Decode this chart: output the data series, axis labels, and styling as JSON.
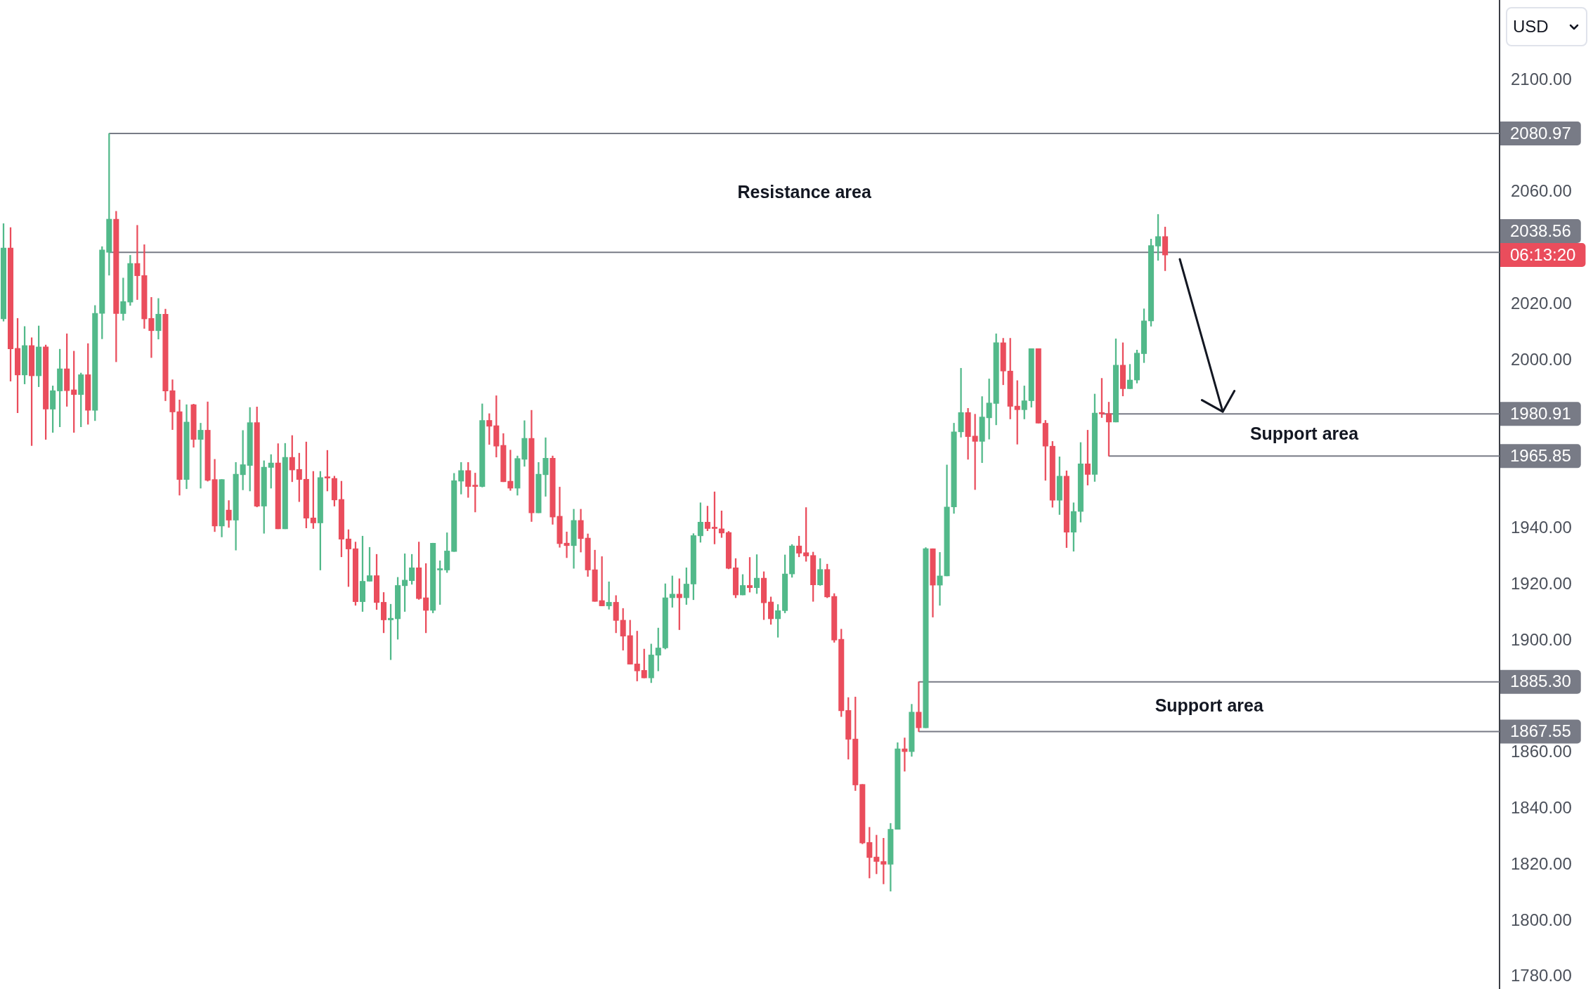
{
  "chart_data": {
    "type": "candlestick",
    "categories": [
      null,
      null,
      null,
      null,
      null,
      null,
      null,
      null,
      null,
      null,
      null,
      null,
      null,
      null,
      null,
      null,
      null,
      null,
      null,
      null,
      null,
      null,
      null,
      null,
      null,
      null,
      null,
      null,
      null,
      null,
      null,
      null,
      null,
      null,
      null,
      null,
      null,
      null,
      null,
      null,
      null,
      null,
      null,
      null,
      null,
      null,
      null,
      null,
      null,
      null,
      null,
      null,
      null,
      null,
      null,
      null,
      null,
      null,
      null,
      null,
      null,
      null,
      null,
      null,
      null,
      null,
      null,
      null,
      null,
      null,
      null,
      null,
      null,
      null,
      null,
      null,
      null,
      null,
      null,
      null,
      null,
      null,
      null,
      null,
      null,
      null,
      null,
      null,
      null,
      null,
      null,
      null,
      null,
      null,
      null,
      null,
      null,
      null,
      null,
      null,
      null,
      null,
      null,
      null,
      null,
      null,
      null,
      null,
      null,
      null,
      null,
      null,
      null,
      null,
      null,
      null,
      null,
      null,
      null,
      null,
      null,
      null,
      null,
      null,
      null,
      null,
      null,
      null,
      null,
      null,
      null,
      null,
      null,
      null,
      null,
      null,
      null,
      null,
      null,
      null,
      null,
      null,
      null,
      null,
      null,
      null,
      null,
      null,
      null,
      null,
      null,
      null,
      null,
      null,
      null,
      null,
      null,
      null,
      null,
      null,
      null,
      null,
      null,
      null,
      null,
      null,
      null,
      null,
      null,
      null,
      null,
      null,
      null,
      null,
      null,
      null,
      null,
      null,
      null,
      null,
      null,
      null,
      null,
      null,
      null,
      null,
      null,
      null,
      null,
      null,
      null,
      null,
      null,
      null,
      null,
      null,
      null,
      null,
      null,
      null,
      null,
      null,
      null,
      null,
      null,
      null,
      null,
      null,
      null,
      null,
      null,
      null,
      null
    ],
    "ohlc": [
      [
        2014.8,
        2048.8,
        2014.0,
        2040.1
      ],
      [
        2040.1,
        2047.4,
        1992.6,
        2004.1
      ],
      [
        2004.3,
        2015.0,
        1981.3,
        1994.8
      ],
      [
        1994.8,
        2012.1,
        1991.6,
        2005.3
      ],
      [
        2005.3,
        2008.1,
        1969.6,
        1994.5
      ],
      [
        1994.5,
        2012.3,
        1990.6,
        2004.8
      ],
      [
        2004.8,
        2005.5,
        1971.8,
        1982.6
      ],
      [
        1982.6,
        1990.9,
        1974.3,
        1989.2
      ],
      [
        1989.1,
        2004.0,
        1976.3,
        1997.0
      ],
      [
        1997.0,
        2009.5,
        1983.6,
        1989.2
      ],
      [
        1989.5,
        2003.3,
        1974.3,
        1987.8
      ],
      [
        1987.8,
        1995.5,
        1976.3,
        1994.9
      ],
      [
        1994.9,
        2006.0,
        1977.2,
        1982.2
      ],
      [
        1982.2,
        2019.6,
        1978.5,
        2016.8
      ],
      [
        2016.8,
        2040.6,
        2007.7,
        2039.4
      ],
      [
        2038.56,
        2080.97,
        2030.4,
        2050.4
      ],
      [
        2050.4,
        2053.2,
        1999.5,
        2016.7
      ],
      [
        2016.7,
        2029.4,
        2014.3,
        2021.0
      ],
      [
        2020.8,
        2037.5,
        2019.6,
        2034.6
      ],
      [
        2034.6,
        2048.2,
        2021.7,
        2030.2
      ],
      [
        2030.3,
        2041.3,
        2011.4,
        2014.8
      ],
      [
        2015.0,
        2022.5,
        2001.0,
        2010.6
      ],
      [
        2010.6,
        2022.1,
        2007.6,
        2016.5
      ],
      [
        2016.5,
        2018.3,
        1985.6,
        1989.1
      ],
      [
        1989.2,
        1993.1,
        1975.3,
        1981.6
      ],
      [
        1981.7,
        1985.9,
        1951.9,
        1957.5
      ],
      [
        1957.5,
        1984.2,
        1954.2,
        1978.0
      ],
      [
        1984.2,
        1984.4,
        1969.0,
        1971.8
      ],
      [
        1971.8,
        1977.6,
        1954.4,
        1975.1
      ],
      [
        1975.1,
        1985.2,
        1956.9,
        1957.2
      ],
      [
        1957.5,
        1964.7,
        1938.9,
        1940.9
      ],
      [
        1940.9,
        1957.5,
        1937.0,
        1957.5
      ],
      [
        1946.6,
        1950.0,
        1940.4,
        1943.0
      ],
      [
        1943.0,
        1963.6,
        1932.3,
        1959.4
      ],
      [
        1959.2,
        1975.0,
        1953.8,
        1962.8
      ],
      [
        1962.5,
        1983.2,
        1953.4,
        1977.8
      ],
      [
        1977.8,
        1983.4,
        1947.7,
        1948.0
      ],
      [
        1948.0,
        1964.2,
        1938.3,
        1961.9
      ],
      [
        1961.8,
        1966.4,
        1954.4,
        1963.4
      ],
      [
        1963.4,
        1970.3,
        1939.9,
        1939.9
      ],
      [
        1939.9,
        1970.4,
        1939.9,
        1965.4
      ],
      [
        1965.4,
        1973.2,
        1956.7,
        1960.9
      ],
      [
        1961.1,
        1966.9,
        1949.6,
        1957.5
      ],
      [
        1957.6,
        1970.9,
        1940.2,
        1943.7
      ],
      [
        1943.8,
        1960.4,
        1940.0,
        1942.0
      ],
      [
        1942.0,
        1960.4,
        1925.2,
        1958.2
      ],
      [
        1958.4,
        1967.9,
        1953.4,
        1958.0
      ],
      [
        1957.9,
        1958.7,
        1948.0,
        1950.2
      ],
      [
        1950.4,
        1956.9,
        1929.9,
        1936.2
      ],
      [
        1936.3,
        1939.6,
        1919.3,
        1932.7
      ],
      [
        1932.8,
        1935.2,
        1912.6,
        1913.9
      ],
      [
        1913.9,
        1937.3,
        1910.4,
        1921.2
      ],
      [
        1921.2,
        1933.3,
        1921.2,
        1923.2
      ],
      [
        1923.2,
        1930.8,
        1911.1,
        1913.6
      ],
      [
        1913.7,
        1917.2,
        1902.8,
        1907.4
      ],
      [
        1907.4,
        1913.0,
        1893.2,
        1908.0
      ],
      [
        1907.8,
        1922.6,
        1900.5,
        1919.7
      ],
      [
        1919.6,
        1931.0,
        1910.4,
        1921.6
      ],
      [
        1921.4,
        1930.8,
        1920.1,
        1926.0
      ],
      [
        1926.0,
        1935.2,
        1914.7,
        1915.0
      ],
      [
        1915.3,
        1927.5,
        1902.8,
        1910.8
      ],
      [
        1910.8,
        1934.8,
        1909.9,
        1934.8
      ],
      [
        1925.2,
        1928.5,
        1912.9,
        1925.6
      ],
      [
        1925.2,
        1938.5,
        1924.3,
        1932.0
      ],
      [
        1931.8,
        1959.7,
        1931.8,
        1957.1
      ],
      [
        1956.9,
        1963.6,
        1952.3,
        1960.7
      ],
      [
        1960.7,
        1963.6,
        1951.1,
        1955.0
      ],
      [
        1955.3,
        1959.8,
        1945.9,
        1955.0
      ],
      [
        1955.0,
        1984.5,
        1954.8,
        1978.6
      ],
      [
        1978.6,
        1981.0,
        1970.0,
        1976.5
      ],
      [
        1976.7,
        1987.4,
        1965.5,
        1969.4
      ],
      [
        1969.7,
        1973.9,
        1956.7,
        1956.7
      ],
      [
        1956.9,
        1968.0,
        1953.6,
        1954.4
      ],
      [
        1954.4,
        1965.9,
        1951.9,
        1965.0
      ],
      [
        1964.7,
        1978.5,
        1962.2,
        1972.2
      ],
      [
        1972.2,
        1982.2,
        1942.5,
        1945.6
      ],
      [
        1945.6,
        1963.6,
        1945.6,
        1959.4
      ],
      [
        1959.2,
        1972.4,
        1951.5,
        1965.1
      ],
      [
        1965.1,
        1965.9,
        1941.5,
        1944.1
      ],
      [
        1944.4,
        1954.8,
        1933.3,
        1934.6
      ],
      [
        1934.8,
        1938.8,
        1929.6,
        1933.9
      ],
      [
        1933.9,
        1946.9,
        1925.8,
        1942.9
      ],
      [
        1942.9,
        1946.9,
        1931.6,
        1936.4
      ],
      [
        1936.6,
        1938.1,
        1922.9,
        1925.2
      ],
      [
        1925.3,
        1932.3,
        1914.0,
        1914.0
      ],
      [
        1914.3,
        1930.0,
        1912.4,
        1912.4
      ],
      [
        1912.4,
        1921.0,
        1911.2,
        1913.7
      ],
      [
        1913.7,
        1916.1,
        1902.8,
        1907.2
      ],
      [
        1907.3,
        1911.5,
        1896.6,
        1901.6
      ],
      [
        1901.8,
        1907.3,
        1891.6,
        1891.6
      ],
      [
        1891.7,
        1903.4,
        1885.6,
        1889.2
      ],
      [
        1889.4,
        1897.0,
        1886.7,
        1886.7
      ],
      [
        1886.7,
        1898.8,
        1885.0,
        1894.9
      ],
      [
        1894.8,
        1904.5,
        1889.2,
        1897.4
      ],
      [
        1897.4,
        1920.3,
        1897.0,
        1915.3
      ],
      [
        1915.3,
        1923.1,
        1911.9,
        1916.6
      ],
      [
        1916.6,
        1922.1,
        1903.9,
        1915.3
      ],
      [
        1915.3,
        1926.0,
        1912.9,
        1920.2
      ],
      [
        1920.2,
        1938.2,
        1914.6,
        1937.5
      ],
      [
        1937.4,
        1949.2,
        1935.1,
        1942.3
      ],
      [
        1942.3,
        1948.0,
        1939.2,
        1940.0
      ],
      [
        1940.4,
        1953.1,
        1934.5,
        1940.0
      ],
      [
        1939.9,
        1946.3,
        1936.8,
        1938.4
      ],
      [
        1938.6,
        1939.0,
        1925.6,
        1925.8
      ],
      [
        1926.0,
        1929.3,
        1915.3,
        1916.3
      ],
      [
        1916.3,
        1923.6,
        1916.3,
        1919.7
      ],
      [
        1919.7,
        1929.7,
        1917.3,
        1918.9
      ],
      [
        1918.9,
        1930.7,
        1916.8,
        1922.3
      ],
      [
        1922.3,
        1924.6,
        1907.5,
        1913.5
      ],
      [
        1913.8,
        1915.6,
        1905.8,
        1907.8
      ],
      [
        1907.8,
        1912.9,
        1901.2,
        1910.7
      ],
      [
        1910.7,
        1930.6,
        1909.9,
        1923.8
      ],
      [
        1923.8,
        1934.3,
        1922.6,
        1933.8
      ],
      [
        1933.8,
        1937.3,
        1929.9,
        1931.2
      ],
      [
        1931.4,
        1947.5,
        1928.3,
        1930.2
      ],
      [
        1930.4,
        1931.6,
        1914.0,
        1919.9
      ],
      [
        1919.9,
        1929.3,
        1919.7,
        1925.4
      ],
      [
        1925.4,
        1927.3,
        1915.3,
        1915.6
      ],
      [
        1915.8,
        1916.8,
        1899.4,
        1900.2
      ],
      [
        1900.5,
        1904.1,
        1872.9,
        1875.0
      ],
      [
        1875.1,
        1879.7,
        1857.7,
        1864.8
      ],
      [
        1864.9,
        1879.9,
        1846.5,
        1848.5
      ],
      [
        1848.7,
        1848.7,
        1827.5,
        1827.8
      ],
      [
        1828.0,
        1833.4,
        1815.3,
        1822.6
      ],
      [
        1822.8,
        1830.6,
        1816.8,
        1821.2
      ],
      [
        1821.2,
        1829.5,
        1813.2,
        1820.2
      ],
      [
        1820.2,
        1834.8,
        1810.6,
        1832.7
      ],
      [
        1832.7,
        1863.6,
        1832.7,
        1861.4
      ],
      [
        1861.4,
        1865.3,
        1853.4,
        1860.4
      ],
      [
        1860.4,
        1877.3,
        1858.7,
        1874.5
      ],
      [
        1874.5,
        1885.3,
        1867.55,
        1868.9
      ],
      [
        1868.9,
        1933.2,
        1868.9,
        1932.8
      ],
      [
        1932.8,
        1932.8,
        1908.4,
        1919.8
      ],
      [
        1919.8,
        1931.5,
        1912.6,
        1923.1
      ],
      [
        1923.1,
        1962.7,
        1923.1,
        1947.7
      ],
      [
        1947.7,
        1977.6,
        1945.4,
        1974.5
      ],
      [
        1974.5,
        1997.2,
        1972.6,
        1981.4
      ],
      [
        1981.4,
        1982.9,
        1964.7,
        1972.8
      ],
      [
        1973.0,
        1980.8,
        1953.9,
        1971.1
      ],
      [
        1971.1,
        1987.1,
        1963.5,
        1979.8
      ],
      [
        1979.5,
        1993.4,
        1971.9,
        1984.8
      ],
      [
        1984.6,
        2009.5,
        1977.0,
        2006.3
      ],
      [
        2006.3,
        2007.9,
        1991.3,
        1996.2
      ],
      [
        1996.2,
        2007.9,
        1979.1,
        1983.6
      ],
      [
        1983.7,
        1992.8,
        1970.1,
        1982.4
      ],
      [
        1982.4,
        1990.9,
        1979.1,
        1985.6
      ],
      [
        1985.6,
        2004.2,
        1983.3,
        2004.2
      ],
      [
        2004.2,
        2004.2,
        1977.6,
        1977.6
      ],
      [
        1977.6,
        1978.6,
        1957.2,
        1969.4
      ],
      [
        1969.4,
        1971.1,
        1947.6,
        1950.1
      ],
      [
        1950.1,
        1965.6,
        1945.0,
        1958.7
      ],
      [
        1958.7,
        1960.6,
        1933.2,
        1938.7
      ],
      [
        1938.7,
        1949.2,
        1931.9,
        1946.1
      ],
      [
        1946.1,
        1970.7,
        1942.3,
        1963.1
      ],
      [
        1963.1,
        1975.1,
        1955.5,
        1959.3
      ],
      [
        1959.3,
        1988.0,
        1956.8,
        1981.2
      ],
      [
        1981.2,
        1993.6,
        1979.6,
        1980.91
      ],
      [
        1981.0,
        1985.1,
        1965.85,
        1978.0
      ],
      [
        1978.0,
        2007.7,
        1978.0,
        1998.3
      ],
      [
        1998.3,
        2006.3,
        1987.3,
        1989.9
      ],
      [
        1989.9,
        1998.6,
        1989.9,
        1993.0
      ],
      [
        1993.0,
        2003.7,
        1991.9,
        2002.6
      ],
      [
        2002.4,
        2018.4,
        1999.2,
        2014.1
      ],
      [
        2014.1,
        2043.3,
        2012.2,
        2041.0
      ],
      [
        2040.8,
        2052.1,
        2035.7,
        2044.2
      ],
      [
        2044.2,
        2047.6,
        2032.0,
        2037.6
      ],
      null,
      null,
      null,
      null,
      null,
      null,
      null,
      null,
      null,
      null,
      null,
      null,
      null,
      null,
      null,
      null,
      null,
      null,
      null,
      null,
      null,
      null,
      null,
      null,
      null,
      null,
      null,
      null,
      null,
      null,
      null,
      null,
      null,
      null,
      null,
      null,
      null,
      null,
      null,
      null,
      null,
      null,
      null,
      null,
      null,
      null,
      null
    ],
    "ylim": [
      1775.7,
      2128.6
    ],
    "yticks": [
      {
        "value": 1780,
        "label": "1780.00"
      },
      {
        "value": 1800,
        "label": "1800.00"
      },
      {
        "value": 1820,
        "label": "1820.00"
      },
      {
        "value": 1840,
        "label": "1840.00"
      },
      {
        "value": 1860,
        "label": "1860.00"
      },
      {
        "value": 1900,
        "label": "1900.00"
      },
      {
        "value": 1920,
        "label": "1920.00"
      },
      {
        "value": 1940,
        "label": "1940.00"
      },
      {
        "value": 2000,
        "label": "2000.00"
      },
      {
        "value": 2020,
        "label": "2020.00"
      },
      {
        "value": 2060,
        "label": "2060.00"
      },
      {
        "value": 2100,
        "label": "2100.00"
      }
    ],
    "ylabel": "USD",
    "tick_labels": "y",
    "ref_lines": [
      {
        "axis": "y",
        "value": 2080.97,
        "label": "2080.97",
        "color": "#787b86"
      },
      {
        "axis": "y",
        "value": 2038.56,
        "label": "2038.56",
        "color": "#787b86"
      },
      {
        "axis": "y",
        "value": 1980.91,
        "label": "1980.91",
        "color": "#787b86"
      },
      {
        "axis": "y",
        "value": 1965.85,
        "label": "1965.85",
        "color": "#787b86"
      },
      {
        "axis": "y",
        "value": 1885.3,
        "label": "1885.30",
        "color": "#787b86"
      },
      {
        "axis": "y",
        "value": 1867.55,
        "label": "1867.55",
        "color": "#787b86"
      }
    ],
    "annotations": [
      "Resistance area",
      "Support area",
      "Support area",
      "06:13:20"
    ]
  }
}
